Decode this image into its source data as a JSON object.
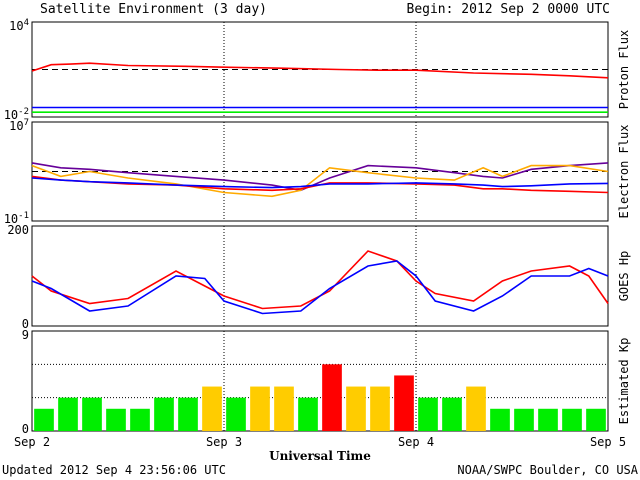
{
  "header": {
    "title": "Satellite Environment (3 day)",
    "begin": "Begin:  2012 Sep 2 0000 UTC"
  },
  "footer": {
    "updated": "Updated 2012 Sep  4 23:56:06 UTC",
    "credit": "NOAA/SWPC Boulder, CO USA"
  },
  "colors": {
    "red": "#ff0000",
    "blue": "#0000ff",
    "green": "#00ee00",
    "purple": "#660099",
    "orange": "#ffaa00",
    "yellow": "#ffcc00"
  },
  "chart_data": [
    {
      "type": "line",
      "ylabel": "Proton Flux",
      "yscale": "log",
      "ylim": [
        "10^-2",
        "10^4"
      ],
      "ytick_labels": [
        "10^4",
        "10^-2"
      ],
      "threshold": 10,
      "x_days": [
        0,
        0.1,
        0.2,
        0.3,
        0.5,
        0.8,
        1.0,
        1.3,
        1.6,
        1.8,
        2.0,
        2.3,
        2.6,
        2.8,
        3.0
      ],
      "series": [
        {
          "color": "red",
          "values": [
            8,
            20,
            22,
            25,
            18,
            16,
            14,
            12,
            10,
            9,
            9,
            6,
            5,
            4,
            3
          ]
        },
        {
          "color": "blue",
          "values": [
            0.04,
            0.04,
            0.04,
            0.04,
            0.04,
            0.04,
            0.04,
            0.04,
            0.04,
            0.04,
            0.04,
            0.04,
            0.04,
            0.04,
            0.04
          ]
        },
        {
          "color": "green",
          "values": [
            0.02,
            0.02,
            0.02,
            0.02,
            0.02,
            0.02,
            0.02,
            0.02,
            0.02,
            0.02,
            0.02,
            0.02,
            0.02,
            0.02,
            0.02
          ]
        }
      ]
    },
    {
      "type": "line",
      "ylabel": "Electron Flux",
      "yscale": "log",
      "ylim": [
        "10^-1",
        "10^7"
      ],
      "ytick_labels": [
        "10^7",
        "10^-1"
      ],
      "threshold": 1000,
      "x_days": [
        0,
        0.15,
        0.3,
        0.5,
        0.75,
        1.0,
        1.25,
        1.4,
        1.55,
        1.75,
        2.0,
        2.2,
        2.35,
        2.45,
        2.6,
        2.8,
        3.0
      ],
      "series": [
        {
          "color": "purple",
          "values": [
            5000,
            2000,
            1500,
            800,
            400,
            200,
            80,
            30,
            300,
            3000,
            2000,
            800,
            400,
            300,
            1500,
            3000,
            5000
          ]
        },
        {
          "color": "orange",
          "values": [
            3000,
            400,
            1000,
            300,
            100,
            20,
            10,
            30,
            2000,
            800,
            300,
            200,
            2000,
            400,
            3000,
            3000,
            1000
          ]
        },
        {
          "color": "red",
          "values": [
            400,
            200,
            150,
            100,
            80,
            40,
            30,
            40,
            120,
            120,
            100,
            80,
            40,
            40,
            30,
            25,
            20
          ]
        },
        {
          "color": "blue",
          "values": [
            300,
            200,
            150,
            120,
            80,
            60,
            50,
            60,
            100,
            100,
            120,
            100,
            80,
            60,
            70,
            100,
            110
          ]
        }
      ]
    },
    {
      "type": "line",
      "ylabel": "GOES Hp",
      "ylim": [
        0,
        200
      ],
      "ytick_labels": [
        "200",
        "0"
      ],
      "x_days": [
        0,
        0.1,
        0.3,
        0.5,
        0.75,
        0.9,
        1.0,
        1.2,
        1.4,
        1.55,
        1.75,
        1.9,
        2.0,
        2.1,
        2.3,
        2.45,
        2.6,
        2.8,
        2.9,
        3.0
      ],
      "series": [
        {
          "color": "red",
          "values": [
            100,
            70,
            45,
            55,
            110,
            80,
            60,
            35,
            40,
            70,
            150,
            130,
            90,
            65,
            50,
            90,
            110,
            120,
            100,
            45
          ]
        },
        {
          "color": "blue",
          "values": [
            90,
            75,
            30,
            40,
            100,
            95,
            50,
            25,
            30,
            75,
            120,
            130,
            100,
            50,
            30,
            60,
            100,
            100,
            115,
            100
          ]
        }
      ]
    },
    {
      "type": "bar",
      "ylabel": "Estimated Kp",
      "ylim": [
        0,
        9
      ],
      "ytick_labels": [
        "9",
        "0"
      ],
      "values": [
        2,
        3,
        3,
        2,
        2,
        3,
        3,
        4,
        3,
        4,
        4,
        3,
        6,
        4,
        4,
        5,
        3,
        3,
        4,
        2,
        2,
        2,
        2,
        2
      ],
      "bar_colors": [
        "green",
        "green",
        "green",
        "green",
        "green",
        "green",
        "green",
        "yellow",
        "green",
        "yellow",
        "yellow",
        "green",
        "red",
        "yellow",
        "yellow",
        "red",
        "green",
        "green",
        "yellow",
        "green",
        "green",
        "green",
        "green",
        "green"
      ]
    }
  ],
  "x_axis": {
    "tick_labels": [
      "Sep 2",
      "Sep 3",
      "Sep 4",
      "Sep 5"
    ],
    "label": "Universal Time"
  }
}
